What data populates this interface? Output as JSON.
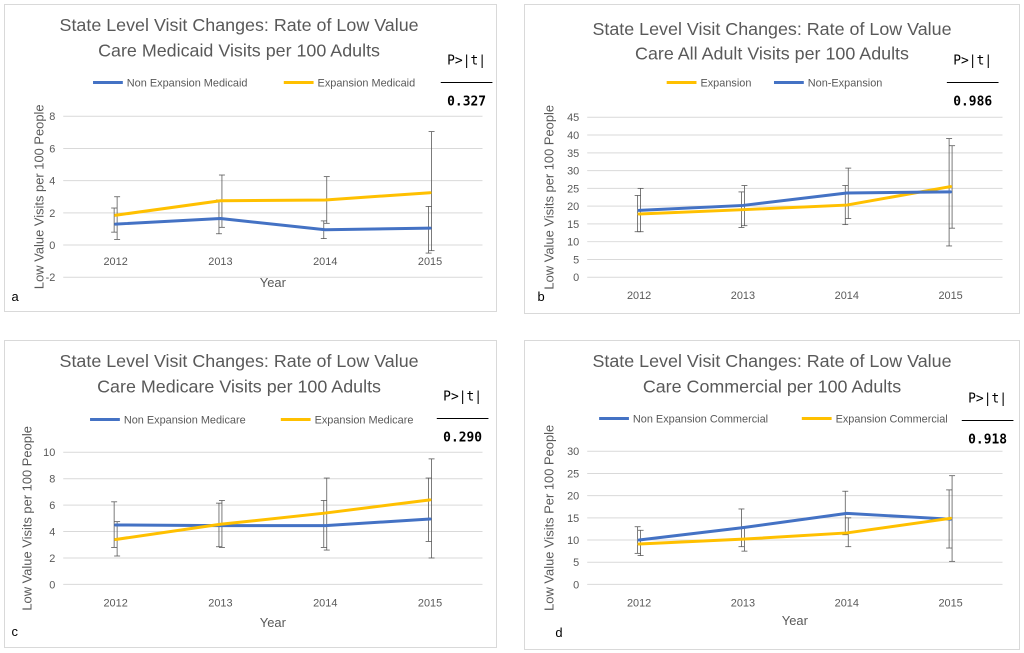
{
  "colors": {
    "blue": "#4472c4",
    "gold": "#ffc000",
    "grid": "#d9d9d9",
    "error_bar": "#595959"
  },
  "chart_data": [
    {
      "type": "line",
      "panel_label": "a",
      "title": [
        "State Level Visit Changes: Rate of Low Value",
        "Care Medicaid Visits per 100 Adults"
      ],
      "xlabel": "Year",
      "ylabel": "Low Value Visits per 100 People",
      "categories": [
        "2012",
        "2013",
        "2014",
        "2015"
      ],
      "ylim": [
        -2,
        8
      ],
      "ystep": 2,
      "legend_position": "top",
      "p_header": "P>|t|",
      "p_value": "0.327",
      "series": [
        {
          "name": "Non Expansion  Medicaid",
          "color": "blue",
          "values": [
            1.3,
            1.65,
            0.95,
            1.05
          ],
          "err_low": [
            0.8,
            0.7,
            0.4,
            -0.5
          ],
          "err_high": [
            2.3,
            2.8,
            1.5,
            2.4
          ]
        },
        {
          "name": "Expansion Medicaid",
          "color": "gold",
          "values": [
            1.85,
            2.75,
            2.8,
            3.25
          ],
          "err_low": [
            0.35,
            1.1,
            1.35,
            -0.35
          ],
          "err_high": [
            3.0,
            4.35,
            4.25,
            7.05
          ]
        }
      ]
    },
    {
      "type": "line",
      "panel_label": "b",
      "title": [
        "State Level Visit Changes: Rate of Low Value",
        "Care All Adult Visits per 100 Adults"
      ],
      "xlabel": "",
      "ylabel": "Low Value Visits per 100 People",
      "categories": [
        "2012",
        "2013",
        "2014",
        "2015"
      ],
      "ylim": [
        0,
        45
      ],
      "ystep": 5,
      "legend_position": "top",
      "p_header": "P>|t|",
      "p_value": "0.986",
      "series": [
        {
          "name": "Expansion",
          "color": "gold",
          "values": [
            17.8,
            19.0,
            20.3,
            25.5
          ],
          "err_low": [
            12.8,
            14.0,
            14.8,
            8.8
          ],
          "err_high": [
            23.0,
            24.0,
            25.8,
            39.0
          ]
        },
        {
          "name": "Non-Expansion",
          "color": "blue",
          "values": [
            18.8,
            20.2,
            23.7,
            24.0
          ],
          "err_low": [
            12.8,
            14.5,
            16.5,
            13.8
          ],
          "err_high": [
            25.0,
            25.8,
            30.7,
            37.0
          ]
        }
      ]
    },
    {
      "type": "line",
      "panel_label": "c",
      "title": [
        "State Level Visit Changes: Rate of Low Value",
        "Care Medicare Visits per 100 Adults"
      ],
      "xlabel": "Year",
      "ylabel": "Low Value Visits per 100 People",
      "categories": [
        "2012",
        "2013",
        "2014",
        "2015"
      ],
      "ylim": [
        0,
        10
      ],
      "ystep": 2,
      "legend_position": "top",
      "p_header": "P>|t|",
      "p_value": "0.290",
      "series": [
        {
          "name": "Non Expansion Medicare",
          "color": "blue",
          "values": [
            4.5,
            4.45,
            4.45,
            4.95
          ],
          "err_low": [
            2.8,
            2.85,
            2.8,
            3.25
          ],
          "err_high": [
            6.25,
            6.15,
            6.35,
            8.05
          ]
        },
        {
          "name": "Expansion Medicare",
          "color": "gold",
          "values": [
            3.4,
            4.55,
            5.4,
            6.4
          ],
          "err_low": [
            2.15,
            2.8,
            2.6,
            2.0
          ],
          "err_high": [
            4.75,
            6.35,
            8.05,
            9.5
          ]
        }
      ]
    },
    {
      "type": "line",
      "panel_label": "d",
      "title": [
        "State Level Visit Changes: Rate of Low Value",
        "Care Commercial per 100 Adults"
      ],
      "xlabel": "Year",
      "ylabel": "Low Value Visits Per 100 People",
      "categories": [
        "2012",
        "2013",
        "2014",
        "2015"
      ],
      "ylim": [
        0,
        30
      ],
      "ystep": 5,
      "legend_position": "top",
      "p_header": "P>|t|",
      "p_value": "0.918",
      "series": [
        {
          "name": "Non Expansion Commercial",
          "color": "blue",
          "values": [
            10.0,
            12.8,
            16.0,
            14.7
          ],
          "err_low": [
            7.0,
            8.5,
            11.2,
            8.2
          ],
          "err_high": [
            13.0,
            17.0,
            21.0,
            21.3
          ]
        },
        {
          "name": "Expansion Commercial",
          "color": "gold",
          "values": [
            9.1,
            10.2,
            11.6,
            14.9
          ],
          "err_low": [
            6.5,
            7.5,
            8.5,
            5.2
          ],
          "err_high": [
            12.2,
            13.0,
            15.0,
            24.5
          ]
        }
      ]
    }
  ]
}
